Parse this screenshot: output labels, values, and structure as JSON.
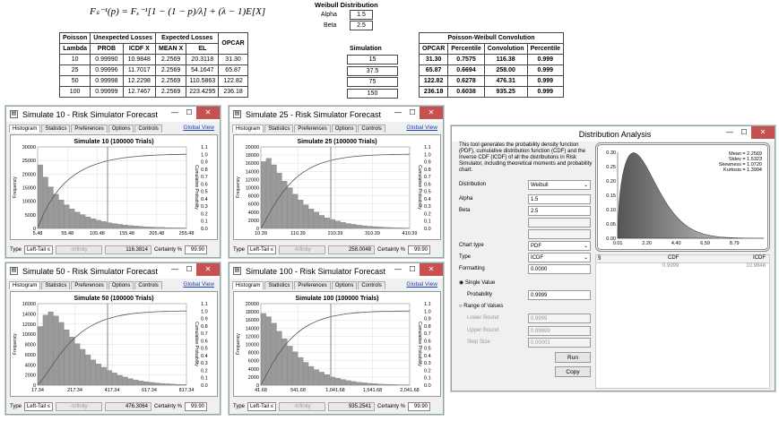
{
  "formula": "Fₛ⁻¹(p) = Fₓ⁻¹[1 − (1 − p)/λ] + (λ − 1)E[X]",
  "weibull": {
    "title": "Weibull Distribution",
    "alpha_label": "Alpha",
    "alpha": "1.5",
    "beta_label": "Beta",
    "beta": "2.5"
  },
  "main_table": {
    "groups": [
      "Poisson",
      "Unexpected Losses",
      "Expected Losses",
      "OPCAR"
    ],
    "headers": [
      "Lambda",
      "PROB",
      "ICDF X",
      "MEAN X",
      "EL"
    ],
    "rows": [
      [
        "10",
        "0.99990",
        "10.9848",
        "2.2569",
        "20.3118",
        "31.30"
      ],
      [
        "25",
        "0.99996",
        "11.7017",
        "2.2569",
        "54.1647",
        "65.87"
      ],
      [
        "50",
        "0.99998",
        "12.2298",
        "2.2569",
        "110.5863",
        "122.82"
      ],
      [
        "100",
        "0.99999",
        "12.7467",
        "2.2569",
        "223.4295",
        "236.18"
      ]
    ]
  },
  "simulation": {
    "header": "Simulation",
    "values": [
      "15",
      "37.5",
      "75",
      "150"
    ]
  },
  "conv_table": {
    "title": "Poisson-Weibull Convolution",
    "headers": [
      "OPCAR",
      "Percentile",
      "Convolution",
      "Percentile"
    ],
    "rows": [
      [
        "31.30",
        "0.7575",
        "116.38",
        "0.999"
      ],
      [
        "65.87",
        "0.6694",
        "258.00",
        "0.999"
      ],
      [
        "122.82",
        "0.6278",
        "476.31",
        "0.999"
      ],
      [
        "236.18",
        "0.6038",
        "935.25",
        "0.999"
      ]
    ]
  },
  "sim_windows": [
    {
      "title": "Simulate 10 - Risk Simulator Forecast",
      "chart_title": "Simulate 10 (100000 Trials)",
      "tabs": [
        "Histogram",
        "Statistics",
        "Preferences",
        "Options",
        "Controls"
      ],
      "global_view": "Global View",
      "yticks": [
        "30000",
        "25000",
        "20000",
        "15000",
        "10000",
        "5000",
        "0"
      ],
      "xticks": [
        "5.48",
        "55.48",
        "105.48",
        "155.48",
        "205.48",
        "255.48"
      ],
      "type_label": "Type",
      "type_value": "Left-Tail ≤",
      "infinity": "-Infinity",
      "value": "116.3814",
      "certainty_label": "Certainty %",
      "certainty": "99.90",
      "yaxis": "Frequency",
      "y2axis": "Cumulative Probability",
      "bars": [
        0.78,
        0.63,
        0.51,
        0.42,
        0.35,
        0.29,
        0.24,
        0.2,
        0.17,
        0.14,
        0.12,
        0.1,
        0.085,
        0.07,
        0.06,
        0.05,
        0.042,
        0.035,
        0.03,
        0.025,
        0.02,
        0.017,
        0.014,
        0.012,
        0.01,
        0.008,
        0.007,
        0.006
      ]
    },
    {
      "title": "Simulate 25 - Risk Simulator Forecast",
      "chart_title": "Simulate 25 (100000 Trials)",
      "tabs": [
        "Histogram",
        "Statistics",
        "Preferences",
        "Options",
        "Controls"
      ],
      "global_view": "Global View",
      "yticks": [
        "20000",
        "18000",
        "16000",
        "14000",
        "12000",
        "10000",
        "8000",
        "6000",
        "4000",
        "2000",
        "0"
      ],
      "xticks": [
        "10.39",
        "110.39",
        "210.39",
        "310.39",
        "410.39"
      ],
      "type_label": "Type",
      "type_value": "Left-Tail ≤",
      "infinity": "-Infinity",
      "value": "258.0048",
      "certainty_label": "Certainty %",
      "certainty": "99.90",
      "yaxis": "Frequency",
      "y2axis": "Cumulative Probability",
      "bars": [
        0.82,
        0.86,
        0.78,
        0.68,
        0.58,
        0.5,
        0.42,
        0.35,
        0.29,
        0.24,
        0.2,
        0.16,
        0.13,
        0.11,
        0.09,
        0.075,
        0.06,
        0.05,
        0.04,
        0.033,
        0.027,
        0.022,
        0.018,
        0.014,
        0.011,
        0.009,
        0.007,
        0.005
      ]
    },
    {
      "title": "Simulate 50 - Risk Simulator Forecast",
      "chart_title": "Simulate 50 (100000 Trials)",
      "tabs": [
        "Histogram",
        "Statistics",
        "Preferences",
        "Options",
        "Controls"
      ],
      "global_view": "Global View",
      "yticks": [
        "16000",
        "14000",
        "12000",
        "10000",
        "8000",
        "6000",
        "4000",
        "2000",
        "0"
      ],
      "xticks": [
        "17.34",
        "217.34",
        "417.34",
        "617.34",
        "817.34"
      ],
      "type_label": "Type",
      "type_value": "Left-Tail ≤",
      "infinity": "-Infinity",
      "value": "476.3064",
      "certainty_label": "Certainty %",
      "certainty": "99.90",
      "yaxis": "Frequency",
      "y2axis": "Cumulative Probability",
      "bars": [
        0.72,
        0.86,
        0.9,
        0.85,
        0.77,
        0.68,
        0.59,
        0.51,
        0.44,
        0.37,
        0.31,
        0.26,
        0.22,
        0.18,
        0.15,
        0.12,
        0.1,
        0.08,
        0.065,
        0.052,
        0.042,
        0.034,
        0.027,
        0.021,
        0.017,
        0.013,
        0.01,
        0.008
      ]
    },
    {
      "title": "Simulate 100 - Risk Simulator Forecast",
      "chart_title": "Simulate 100 (100000 Trials)",
      "tabs": [
        "Histogram",
        "Statistics",
        "Preferences",
        "Options",
        "Controls"
      ],
      "global_view": "Global View",
      "yticks": [
        "20000",
        "18000",
        "16000",
        "14000",
        "12000",
        "10000",
        "8000",
        "6000",
        "4000",
        "2000",
        "0"
      ],
      "xticks": [
        "41.68",
        "541.68",
        "1,041.68",
        "1,541.68",
        "2,041.68"
      ],
      "type_label": "Type",
      "type_value": "Left-Tail ≤",
      "infinity": "-Infinity",
      "value": "935.2541",
      "certainty_label": "Certainty %",
      "certainty": "99.90",
      "yaxis": "Frequency",
      "y2axis": "Cumulative Probability",
      "bars": [
        0.88,
        0.84,
        0.76,
        0.66,
        0.57,
        0.48,
        0.41,
        0.34,
        0.28,
        0.23,
        0.19,
        0.16,
        0.13,
        0.1,
        0.085,
        0.07,
        0.056,
        0.045,
        0.036,
        0.029,
        0.023,
        0.018,
        0.014,
        0.011,
        0.009,
        0.007,
        0.005,
        0.004
      ]
    }
  ],
  "cum_ticks": [
    "1.1",
    "1.0",
    "0.9",
    "0.8",
    "0.7",
    "0.6",
    "0.5",
    "0.4",
    "0.3",
    "0.2",
    "0.1",
    "0.0"
  ],
  "dist": {
    "title": "Distribution Analysis",
    "description": "This tool generates the probability density function (PDF), cumulative distribution function (CDF) and the Inverse CDF (ICDF) of all the distributions in Risk Simulator, including theoretical moments and probability chart.",
    "distribution_label": "Distribution",
    "distribution": "Weibull",
    "alpha_label": "Alpha",
    "alpha": "1.5",
    "beta_label": "Beta",
    "beta": "2.5",
    "chart_type_label": "Chart type",
    "chart_type": "PDF",
    "type_label": "Type",
    "type": "ICDF",
    "formatting_label": "Formatting",
    "formatting": "0.0000",
    "single_label": "Single Value",
    "probability_label": "Probability",
    "probability": "0.9999",
    "range_label": "Range of Values",
    "lower_label": "Lower Bound",
    "lower": "0.9999",
    "upper_label": "Upper Bound",
    "upper": "0.99999",
    "step_label": "Step Size",
    "step": "0.00001",
    "run": "Run",
    "copy": "Copy",
    "stats": [
      "Mean = 2.2569",
      "Stdev = 1.5323",
      "Skewness = 1.0720",
      "Kurtosis = 1.3904"
    ],
    "yticks": [
      "0.30",
      "0.25",
      "0.20",
      "0.15",
      "0.10",
      "0.05",
      "0.00"
    ],
    "xticks": [
      "0.01",
      "2.20",
      "4.40",
      "6.59",
      "8.79"
    ],
    "col_cdf": "CDF",
    "col_icdf": "ICDF",
    "row_cdf": "0.9999",
    "row_icdf": "10.9848"
  }
}
